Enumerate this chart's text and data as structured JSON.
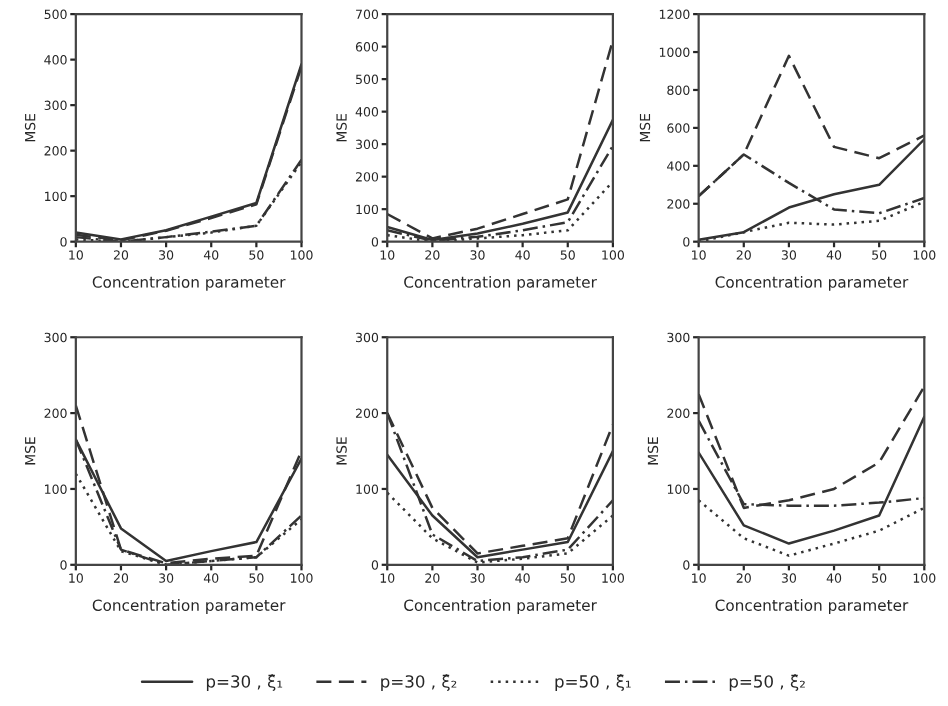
{
  "chart_data": [
    {
      "type": "line",
      "xlabel": "Concentration parameter",
      "ylabel": "MSE",
      "categories": [
        "10",
        "20",
        "30",
        "40",
        "50",
        "100"
      ],
      "ylim": [
        0,
        500
      ],
      "yticks": [
        0,
        100,
        200,
        300,
        400,
        500
      ],
      "legend": "bottom",
      "series": [
        {
          "name": "p=30 , ξ̂₁",
          "color": "#333333",
          "line_style": "solid",
          "values": [
            20,
            5,
            25,
            55,
            85,
            390
          ]
        },
        {
          "name": "p=30 , ξ̂₂",
          "color": "#333333",
          "line_style": "dashed",
          "values": [
            15,
            3,
            24,
            52,
            82,
            385
          ]
        },
        {
          "name": "p=50 , ξ̂₁",
          "color": "#333333",
          "line_style": "dotted",
          "values": [
            5,
            0,
            10,
            20,
            35,
            175
          ]
        },
        {
          "name": "p=50 , ξ̂₂",
          "color": "#333333",
          "line_style": "dashdot",
          "values": [
            10,
            0,
            10,
            22,
            35,
            180
          ]
        }
      ]
    },
    {
      "type": "line",
      "xlabel": "Concentration parameter",
      "ylabel": "MSE",
      "categories": [
        "10",
        "20",
        "30",
        "40",
        "50",
        "100"
      ],
      "ylim": [
        0,
        700
      ],
      "yticks": [
        0,
        100,
        200,
        300,
        400,
        500,
        600,
        700
      ],
      "series": [
        {
          "color": "#333333",
          "line_style": "solid",
          "values": [
            45,
            5,
            25,
            55,
            90,
            375
          ]
        },
        {
          "color": "#333333",
          "line_style": "dashed",
          "values": [
            85,
            10,
            40,
            85,
            130,
            620
          ]
        },
        {
          "color": "#333333",
          "line_style": "dotted",
          "values": [
            20,
            0,
            10,
            20,
            35,
            185
          ]
        },
        {
          "color": "#333333",
          "line_style": "dashdot",
          "values": [
            35,
            3,
            15,
            35,
            60,
            295
          ]
        }
      ]
    },
    {
      "type": "line",
      "xlabel": "Concentration parameter",
      "ylabel": "MSE",
      "categories": [
        "10",
        "20",
        "30",
        "40",
        "50",
        "100"
      ],
      "ylim": [
        0,
        1200
      ],
      "yticks": [
        0,
        200,
        400,
        600,
        800,
        1000,
        1200
      ],
      "series": [
        {
          "color": "#333333",
          "line_style": "solid",
          "values": [
            10,
            50,
            180,
            250,
            300,
            540
          ]
        },
        {
          "color": "#333333",
          "line_style": "dashed",
          "values": [
            240,
            460,
            980,
            500,
            440,
            560
          ]
        },
        {
          "color": "#333333",
          "line_style": "dotted",
          "values": [
            0,
            50,
            100,
            90,
            110,
            210
          ]
        },
        {
          "color": "#333333",
          "line_style": "dashdot",
          "values": [
            240,
            460,
            310,
            170,
            150,
            230
          ]
        }
      ]
    },
    {
      "type": "line",
      "xlabel": "Concentration parameter",
      "ylabel": "MSE",
      "categories": [
        "10",
        "20",
        "30",
        "40",
        "50",
        "100"
      ],
      "ylim": [
        0,
        300
      ],
      "yticks": [
        0,
        100,
        200,
        300
      ],
      "series": [
        {
          "color": "#333333",
          "line_style": "solid",
          "values": [
            165,
            48,
            5,
            18,
            30,
            140
          ]
        },
        {
          "color": "#333333",
          "line_style": "dashed",
          "values": [
            210,
            20,
            2,
            8,
            12,
            150
          ]
        },
        {
          "color": "#333333",
          "line_style": "dotted",
          "values": [
            120,
            18,
            0,
            5,
            10,
            60
          ]
        },
        {
          "color": "#333333",
          "line_style": "dashdot",
          "values": [
            165,
            20,
            0,
            5,
            10,
            65
          ]
        }
      ]
    },
    {
      "type": "line",
      "xlabel": "Concentration parameter",
      "ylabel": "MSE",
      "categories": [
        "10",
        "20",
        "30",
        "40",
        "50",
        "100"
      ],
      "ylim": [
        0,
        300
      ],
      "yticks": [
        0,
        100,
        200,
        300
      ],
      "series": [
        {
          "color": "#333333",
          "line_style": "solid",
          "values": [
            145,
            65,
            10,
            20,
            30,
            150
          ]
        },
        {
          "color": "#333333",
          "line_style": "dashed",
          "values": [
            200,
            75,
            15,
            25,
            35,
            185
          ]
        },
        {
          "color": "#333333",
          "line_style": "dotted",
          "values": [
            95,
            35,
            3,
            8,
            15,
            65
          ]
        },
        {
          "color": "#333333",
          "line_style": "dashdot",
          "values": [
            200,
            40,
            5,
            10,
            20,
            85
          ]
        }
      ]
    },
    {
      "type": "line",
      "xlabel": "Concentration parameter",
      "ylabel": "MSE",
      "categories": [
        "10",
        "20",
        "30",
        "40",
        "50",
        "100"
      ],
      "ylim": [
        0,
        300
      ],
      "yticks": [
        0,
        100,
        200,
        300
      ],
      "series": [
        {
          "color": "#333333",
          "line_style": "solid",
          "values": [
            148,
            52,
            28,
            45,
            65,
            195
          ]
        },
        {
          "color": "#333333",
          "line_style": "dashed",
          "values": [
            225,
            75,
            85,
            100,
            135,
            235
          ]
        },
        {
          "color": "#333333",
          "line_style": "dotted",
          "values": [
            85,
            35,
            12,
            28,
            45,
            75
          ]
        },
        {
          "color": "#333333",
          "line_style": "dashdot",
          "values": [
            190,
            80,
            78,
            78,
            82,
            88
          ]
        }
      ]
    }
  ]
}
